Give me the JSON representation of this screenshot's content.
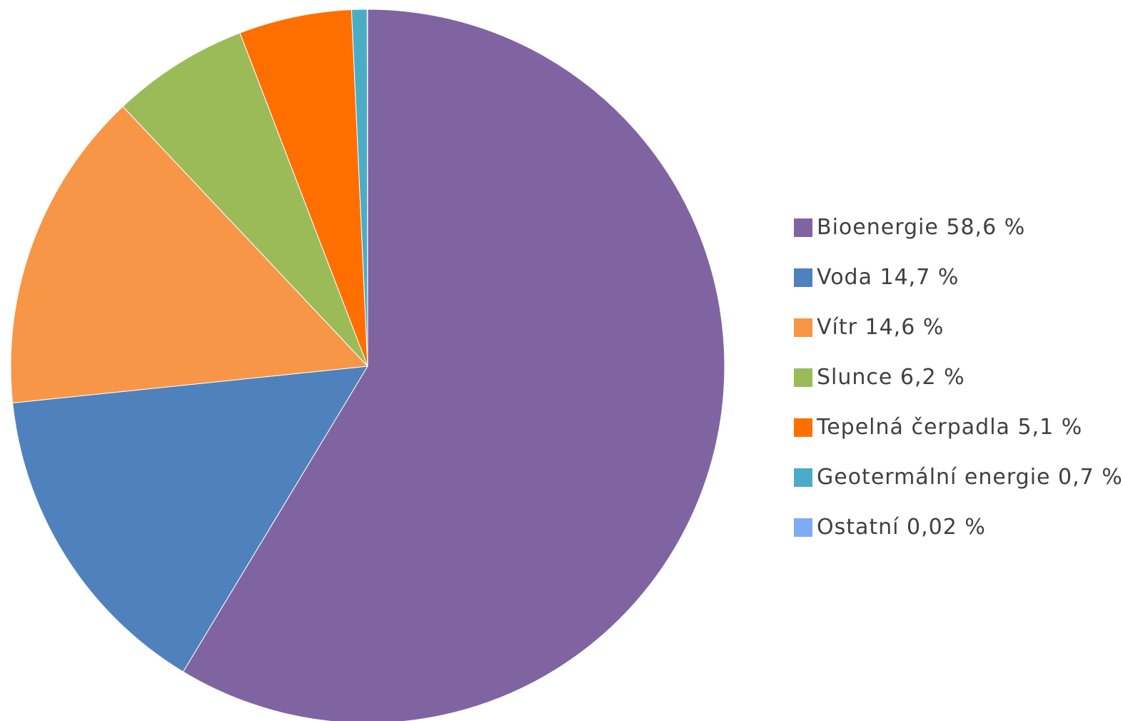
{
  "chart_data": {
    "type": "pie",
    "title": "",
    "legend_position": "right",
    "slices": [
      {
        "label": "Bioenergie 58,6 %",
        "value": 58.6,
        "color": "#8064a2"
      },
      {
        "label": "Voda 14,7 %",
        "value": 14.7,
        "color": "#4f81bd"
      },
      {
        "label": "Vítr 14,6 %",
        "value": 14.6,
        "color": "#f79646"
      },
      {
        "label": "Slunce 6,2 %",
        "value": 6.2,
        "color": "#9bbb59"
      },
      {
        "label": "Tepelná čerpadla 5,1 %",
        "value": 5.1,
        "color": "#ff6f00"
      },
      {
        "label": "Geotermální energie 0,7 %",
        "value": 0.7,
        "color": "#4bacc6"
      },
      {
        "label": "Ostatní 0,02 %",
        "value": 0.02,
        "color": "#7fabf4"
      }
    ]
  }
}
